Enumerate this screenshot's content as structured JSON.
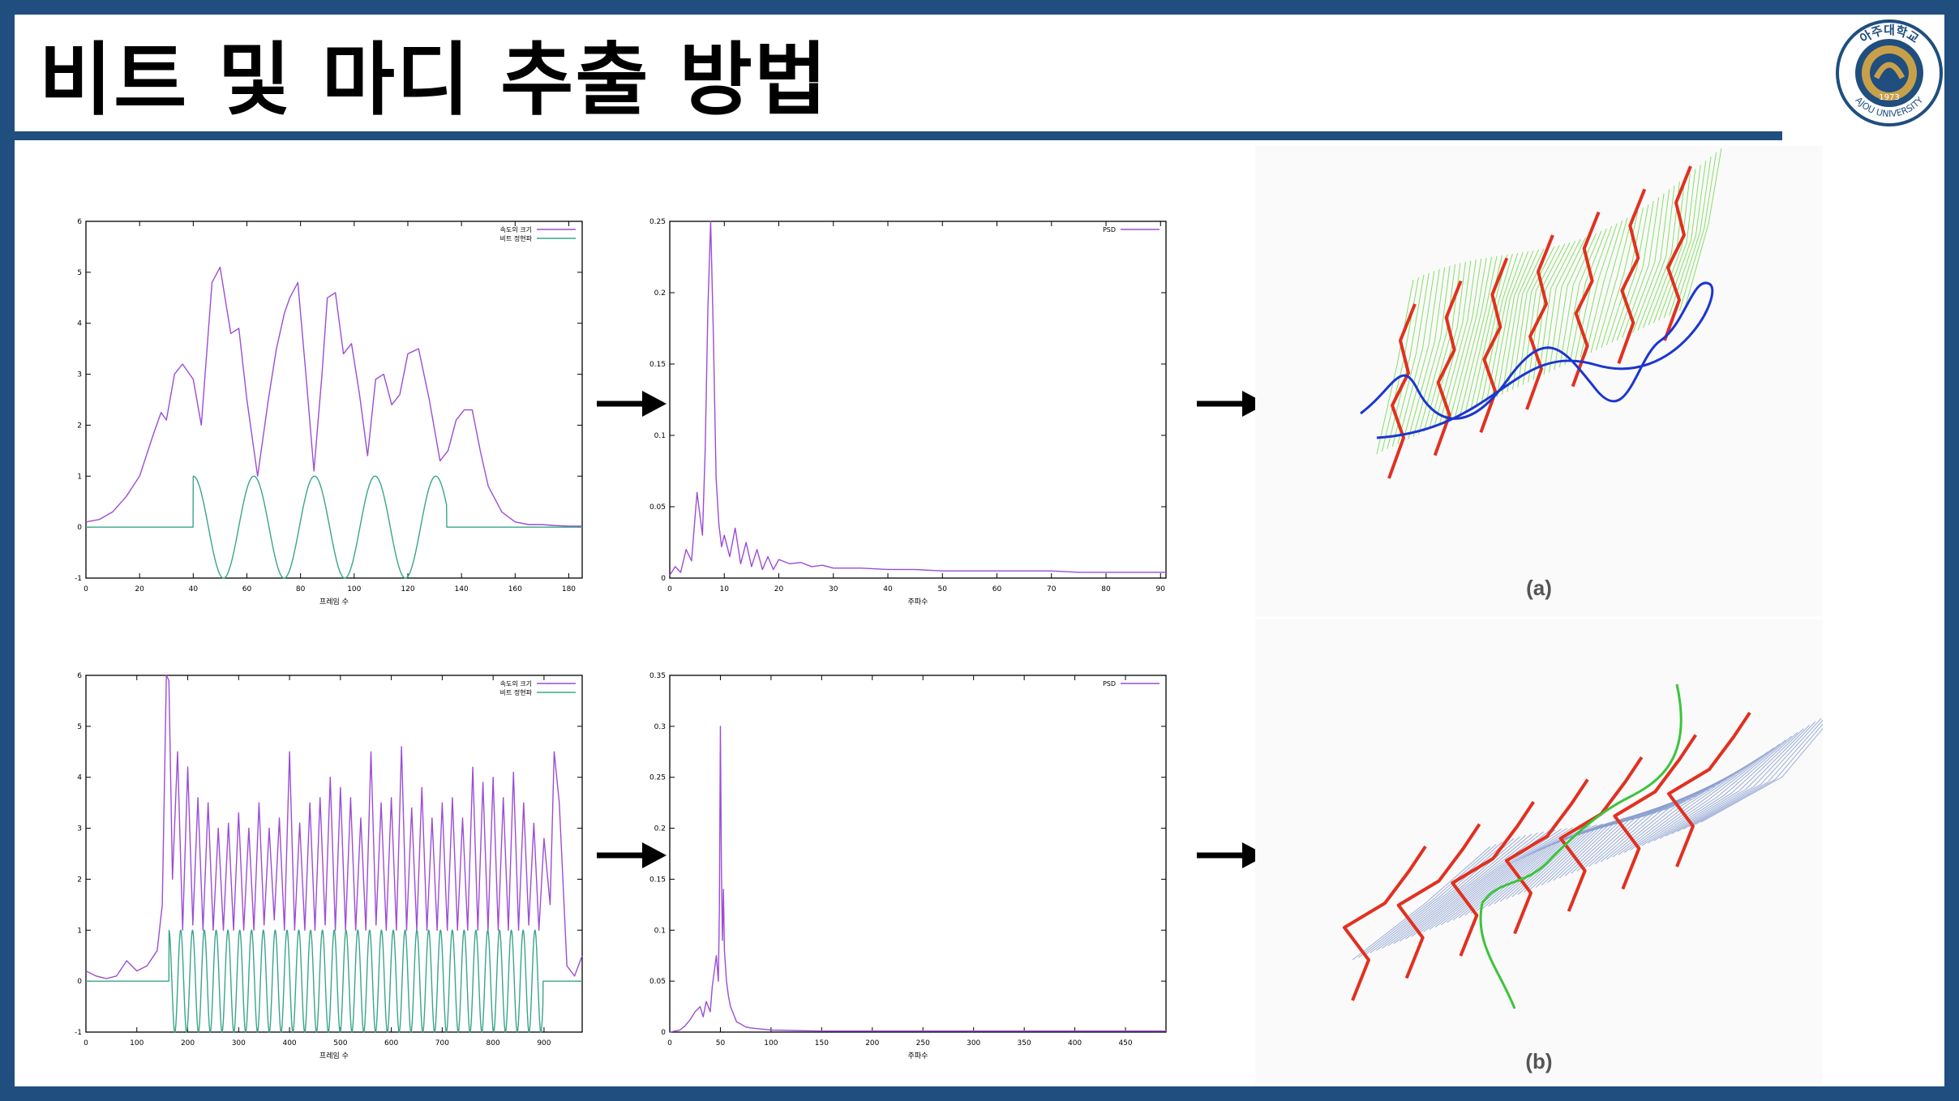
{
  "slide": {
    "title": "비트 및 마디 추출 방법",
    "logo": {
      "arc_text_top": "아주대학교",
      "arc_text_bottom": "AJOU UNIVERSITY",
      "year": "1973",
      "colors": {
        "ring": "#1f4e7f",
        "emblem": "#c9a04a"
      }
    },
    "colors": {
      "frame": "#1f4e7f",
      "velocity": "#9b4dd6",
      "beat_wave": "#3aa58a",
      "psd": "#9b4dd6",
      "red_lines": "#e2301f",
      "green_mesh": "#6edc45",
      "blue_curve": "#1b36d0",
      "blue_mesh": "#8a9fcf",
      "green_curve": "#3bc43b"
    }
  },
  "chart_data": [
    {
      "type": "line",
      "id": "velocity_a",
      "xlabel": "프레임 수",
      "xlim": [
        0,
        185
      ],
      "ylim": [
        -1,
        6
      ],
      "xticks": [
        0,
        20,
        40,
        60,
        80,
        100,
        120,
        140,
        160,
        180
      ],
      "yticks": [
        -1,
        0,
        1,
        2,
        3,
        4,
        5,
        6
      ],
      "legend_position": "top-right",
      "series": [
        {
          "name": "속도의 크기",
          "role": "velocity",
          "x": [
            0,
            5,
            10,
            15,
            20,
            25,
            28,
            30,
            33,
            36,
            40,
            43,
            47,
            50,
            54,
            57,
            60,
            64,
            68,
            71,
            74,
            76,
            79,
            82,
            85,
            88,
            90,
            93,
            96,
            99,
            102,
            105,
            108,
            111,
            114,
            117,
            120,
            124,
            128,
            132,
            135,
            138,
            141,
            144,
            147,
            150,
            155,
            160,
            165,
            170,
            175,
            180,
            185
          ],
          "y": [
            0.1,
            0.15,
            0.3,
            0.6,
            1.0,
            1.8,
            2.25,
            2.1,
            3.0,
            3.2,
            2.9,
            2.0,
            4.8,
            5.1,
            3.8,
            3.9,
            2.5,
            1.0,
            2.5,
            3.5,
            4.2,
            4.5,
            4.8,
            3.0,
            1.1,
            3.0,
            4.5,
            4.6,
            3.4,
            3.6,
            2.6,
            1.4,
            2.9,
            3.0,
            2.4,
            2.6,
            3.4,
            3.5,
            2.5,
            1.3,
            1.5,
            2.1,
            2.3,
            2.3,
            1.5,
            0.8,
            0.3,
            0.1,
            0.05,
            0.05,
            0.03,
            0.02,
            0.02
          ]
        },
        {
          "name": "비트 정현파",
          "role": "beat",
          "period": 22.6,
          "start": 40,
          "end": 134.5,
          "amplitude": 1
        }
      ]
    },
    {
      "type": "line",
      "id": "psd_a",
      "xlabel": "주파수",
      "xlim": [
        0,
        91
      ],
      "ylim": [
        0,
        0.25
      ],
      "xticks": [
        0,
        10,
        20,
        30,
        40,
        50,
        60,
        70,
        80,
        90
      ],
      "yticks": [
        0,
        0.05,
        0.1,
        0.15,
        0.2,
        0.25
      ],
      "legend_position": "top-right",
      "series": [
        {
          "name": "PSD",
          "x": [
            0,
            1,
            2,
            3,
            4,
            5,
            5.5,
            6,
            6.5,
            7,
            7.5,
            8,
            8.5,
            9,
            9.5,
            10,
            11,
            12,
            13,
            14,
            15,
            16,
            17,
            18,
            19,
            20,
            22,
            24,
            26,
            28,
            30,
            35,
            40,
            45,
            50,
            55,
            60,
            65,
            70,
            75,
            80,
            85,
            91
          ],
          "y": [
            0.002,
            0.008,
            0.004,
            0.02,
            0.012,
            0.06,
            0.045,
            0.03,
            0.09,
            0.19,
            0.25,
            0.17,
            0.07,
            0.038,
            0.022,
            0.03,
            0.015,
            0.035,
            0.01,
            0.025,
            0.008,
            0.02,
            0.006,
            0.015,
            0.006,
            0.013,
            0.01,
            0.011,
            0.008,
            0.009,
            0.007,
            0.007,
            0.006,
            0.006,
            0.005,
            0.005,
            0.005,
            0.005,
            0.005,
            0.004,
            0.004,
            0.004,
            0.004
          ]
        }
      ]
    },
    {
      "type": "line",
      "id": "velocity_b",
      "xlabel": "프레임 수",
      "xlim": [
        0,
        975
      ],
      "ylim": [
        -1,
        6
      ],
      "xticks": [
        0,
        100,
        200,
        300,
        400,
        500,
        600,
        700,
        800,
        900
      ],
      "yticks": [
        -1,
        0,
        1,
        2,
        3,
        4,
        5,
        6
      ],
      "legend_position": "top-right",
      "series": [
        {
          "name": "속도의 크기",
          "role": "velocity",
          "x": [
            0,
            20,
            40,
            60,
            80,
            100,
            120,
            140,
            150,
            158,
            163,
            170,
            180,
            190,
            200,
            210,
            220,
            230,
            240,
            250,
            260,
            270,
            280,
            290,
            300,
            310,
            320,
            330,
            340,
            350,
            360,
            370,
            380,
            390,
            400,
            410,
            420,
            430,
            440,
            450,
            460,
            470,
            480,
            490,
            500,
            510,
            520,
            530,
            540,
            550,
            560,
            570,
            580,
            590,
            600,
            610,
            620,
            630,
            640,
            650,
            660,
            670,
            680,
            690,
            700,
            710,
            720,
            730,
            740,
            750,
            760,
            770,
            780,
            790,
            800,
            810,
            820,
            830,
            840,
            850,
            860,
            870,
            880,
            890,
            900,
            912,
            920,
            930,
            945,
            960,
            975
          ],
          "y": [
            0.2,
            0.1,
            0.05,
            0.1,
            0.4,
            0.2,
            0.3,
            0.6,
            1.5,
            6.0,
            5.9,
            2.0,
            4.5,
            1.0,
            4.2,
            1.1,
            3.6,
            1.0,
            3.5,
            1.0,
            3.0,
            1.0,
            3.1,
            1.0,
            3.3,
            1.0,
            3.0,
            1.0,
            3.5,
            1.1,
            3.0,
            1.2,
            3.2,
            1.0,
            4.5,
            1.0,
            3.1,
            1.0,
            3.5,
            1.0,
            3.6,
            1.1,
            4.0,
            1.0,
            3.8,
            1.0,
            3.6,
            1.0,
            3.2,
            1.0,
            4.5,
            1.1,
            3.5,
            1.0,
            3.6,
            1.0,
            4.6,
            1.0,
            3.4,
            1.0,
            3.8,
            1.0,
            3.2,
            1.0,
            3.5,
            1.0,
            3.6,
            1.0,
            3.2,
            1.0,
            4.2,
            1.0,
            3.9,
            1.0,
            4.0,
            1.0,
            3.6,
            1.0,
            4.1,
            1.0,
            3.5,
            1.1,
            3.1,
            1.0,
            2.8,
            1.5,
            4.5,
            3.5,
            0.3,
            0.1,
            0.5
          ]
        },
        {
          "name": "비트 정현파",
          "role": "beat",
          "period": 23.2,
          "start": 163,
          "end": 898,
          "amplitude": 1
        }
      ]
    },
    {
      "type": "line",
      "id": "psd_b",
      "xlabel": "주파수",
      "xlim": [
        0,
        490
      ],
      "ylim": [
        0,
        0.35
      ],
      "xticks": [
        0,
        50,
        100,
        150,
        200,
        250,
        300,
        350,
        400,
        450
      ],
      "yticks": [
        0,
        0.05,
        0.1,
        0.15,
        0.2,
        0.25,
        0.3,
        0.35
      ],
      "legend_position": "top-right",
      "series": [
        {
          "name": "PSD",
          "x": [
            0,
            10,
            15,
            20,
            25,
            30,
            33,
            36,
            40,
            42,
            44,
            46,
            48,
            49,
            50,
            51,
            52,
            53,
            54,
            56,
            58,
            60,
            62,
            64,
            66,
            70,
            75,
            80,
            90,
            100,
            150,
            200,
            250,
            300,
            350,
            400,
            450,
            490
          ],
          "y": [
            0,
            0.002,
            0.006,
            0.012,
            0.02,
            0.025,
            0.015,
            0.03,
            0.02,
            0.045,
            0.06,
            0.075,
            0.05,
            0.12,
            0.3,
            0.16,
            0.09,
            0.14,
            0.08,
            0.05,
            0.035,
            0.025,
            0.02,
            0.015,
            0.01,
            0.008,
            0.005,
            0.004,
            0.003,
            0.002,
            0.001,
            0.001,
            0.001,
            0.001,
            0.001,
            0.001,
            0.001,
            0.001
          ]
        }
      ]
    }
  ],
  "figures": [
    {
      "id": "a",
      "caption": "(a)",
      "palette": {
        "mesh": "#6edc45",
        "curve": "#1b36d0",
        "strokes": "#e2301f"
      }
    },
    {
      "id": "b",
      "caption": "(b)",
      "palette": {
        "mesh": "#8a9fcf",
        "curve": "#3bc43b",
        "strokes": "#e2301f"
      }
    }
  ]
}
